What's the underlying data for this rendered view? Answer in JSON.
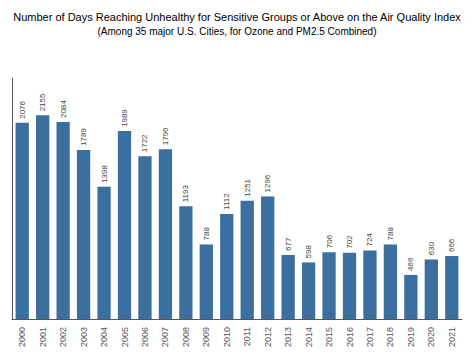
{
  "chart_data": {
    "type": "bar",
    "title": "Number of Days Reaching Unhealthy for Sensitive Groups or Above on the Air Quality Index",
    "subtitle": "(Among 35 major U.S. Cities, for Ozone and PM2.5 Combined)",
    "categories": [
      "2000",
      "2001",
      "2002",
      "2003",
      "2004",
      "2005",
      "2006",
      "2007",
      "2008",
      "2009",
      "2010",
      "2011",
      "2012",
      "2013",
      "2014",
      "2015",
      "2016",
      "2017",
      "2018",
      "2019",
      "2020",
      "2021"
    ],
    "values": [
      2076,
      2155,
      2084,
      1789,
      1398,
      1989,
      1722,
      1796,
      1193,
      788,
      1112,
      1251,
      1296,
      677,
      598,
      706,
      702,
      724,
      788,
      466,
      630,
      666
    ],
    "color": "#3A6F9F",
    "ylim": [
      0,
      2550
    ],
    "grid": false,
    "tick_labels": "x",
    "data_labels": true
  }
}
